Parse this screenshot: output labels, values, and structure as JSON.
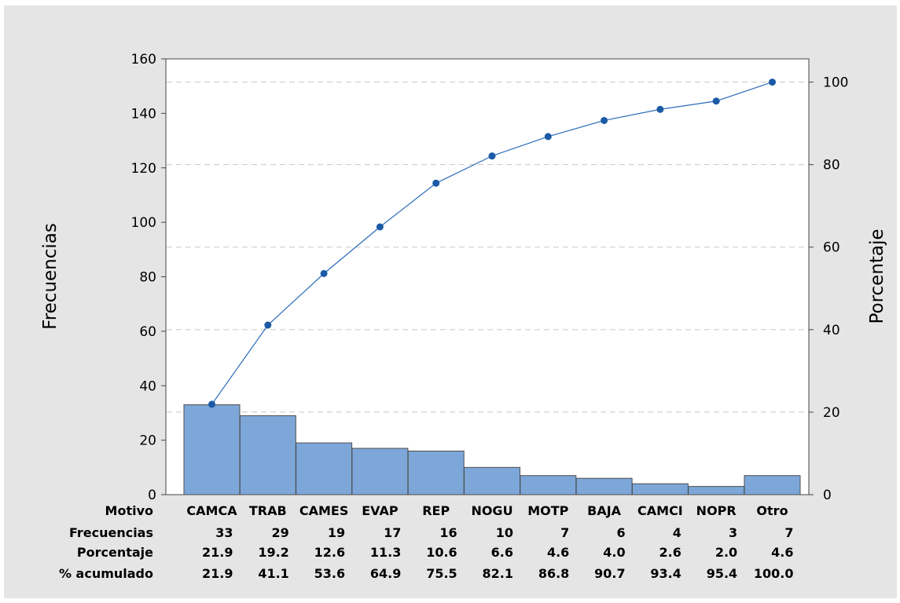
{
  "chart_data": {
    "type": "bar",
    "categories": [
      "CAMCA",
      "TRAB",
      "CAMES",
      "EVAP",
      "REP",
      "NOGU",
      "MOTP",
      "BAJA",
      "CAMCI",
      "NOPR",
      "Otro"
    ],
    "series": [
      {
        "values": [
          33,
          29,
          19,
          17,
          16,
          10,
          7,
          6,
          4,
          3,
          7
        ],
        "type": "bar",
        "axis": "left"
      },
      {
        "values": [
          21.9,
          41.1,
          53.6,
          64.9,
          75.5,
          82.1,
          86.8,
          90.7,
          93.4,
          95.4,
          100.0
        ],
        "type": "line",
        "axis": "right"
      }
    ],
    "ylabel": "Frecuencias",
    "y2label": "Porcentaje",
    "ylim": [
      0,
      160
    ],
    "y2lim": [
      0,
      105.63
    ],
    "yticks": [
      "0",
      "20",
      "40",
      "60",
      "80",
      "100",
      "120",
      "140",
      "160"
    ],
    "y2ticks": [
      "0",
      "20",
      "40",
      "60",
      "80",
      "100"
    ],
    "grid": "dashed horizontal lines at right-axis ticks",
    "bar_color": "#7da7d9",
    "line_color": "#2b6cb8",
    "marker_color": "#1b5aa6",
    "table": {
      "row_labels": [
        "Motivo",
        "Frecuencias",
        "Porcentaje",
        "% acumulado"
      ],
      "frecuencias": [
        "33",
        "29",
        "19",
        "17",
        "16",
        "10",
        "7",
        "6",
        "4",
        "3",
        "7"
      ],
      "porcentaje": [
        "21.9",
        "19.2",
        "12.6",
        "11.3",
        "10.6",
        "6.6",
        "4.6",
        "4.0",
        "2.6",
        "2.0",
        "4.6"
      ],
      "acumulado": [
        "21.9",
        "41.1",
        "53.6",
        "64.9",
        "75.5",
        "82.1",
        "86.8",
        "90.7",
        "93.4",
        "95.4",
        "100.0"
      ]
    }
  }
}
